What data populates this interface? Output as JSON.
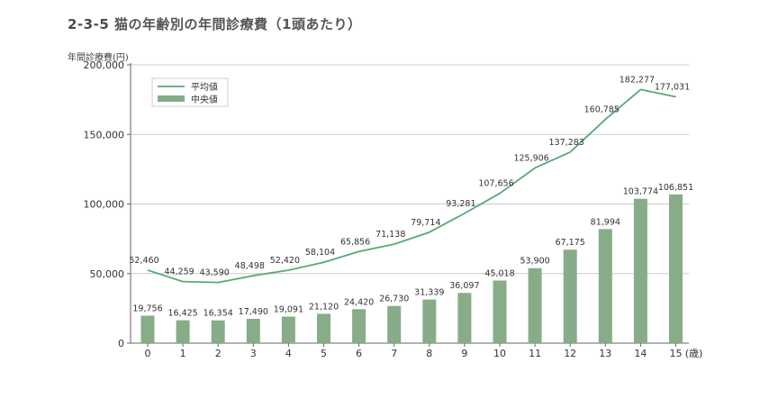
{
  "title": {
    "number": "2-3-5",
    "text": "猫の年齢別の年間診療費（1頭あたり）"
  },
  "colors": {
    "line": "#5aa874",
    "bar": "#86ad87",
    "axis": "#666666",
    "grid": "#cccccc"
  },
  "chart_data": {
    "type": "bar",
    "title": "猫の年齢別の年間診療費（1頭あたり）",
    "ylabel": "年間診療費(円)",
    "xlabel": "",
    "x_unit": "(歳)",
    "categories": [
      "0",
      "1",
      "2",
      "3",
      "4",
      "5",
      "6",
      "7",
      "8",
      "9",
      "10",
      "11",
      "12",
      "13",
      "14",
      "15"
    ],
    "ylim": [
      0,
      200000
    ],
    "yticks": [
      0,
      50000,
      100000,
      150000,
      200000
    ],
    "ytick_labels": [
      "0",
      "50,000",
      "100,000",
      "150,000",
      "200,000"
    ],
    "legend_position": "top-left",
    "grid": true,
    "series": [
      {
        "name": "平均値",
        "kind": "line",
        "values": [
          52460,
          44259,
          43590,
          48498,
          52420,
          58104,
          65856,
          71138,
          79714,
          93281,
          107656,
          125906,
          137283,
          160785,
          182277,
          177031
        ],
        "labels": [
          "52,460",
          "44,259",
          "43,590",
          "48,498",
          "52,420",
          "58,104",
          "65,856",
          "71,138",
          "79,714",
          "93,281",
          "107,656",
          "125,906",
          "137,283",
          "160,785",
          "182,277",
          "177,031"
        ]
      },
      {
        "name": "中央値",
        "kind": "bar",
        "values": [
          19756,
          16425,
          16354,
          17490,
          19091,
          21120,
          24420,
          26730,
          31339,
          36097,
          45018,
          53900,
          67175,
          81994,
          103774,
          106851
        ],
        "labels": [
          "19,756",
          "16,425",
          "16,354",
          "17,490",
          "19,091",
          "21,120",
          "24,420",
          "26,730",
          "31,339",
          "36,097",
          "45,018",
          "53,900",
          "67,175",
          "81,994",
          "103,774",
          "106,851"
        ]
      }
    ]
  }
}
